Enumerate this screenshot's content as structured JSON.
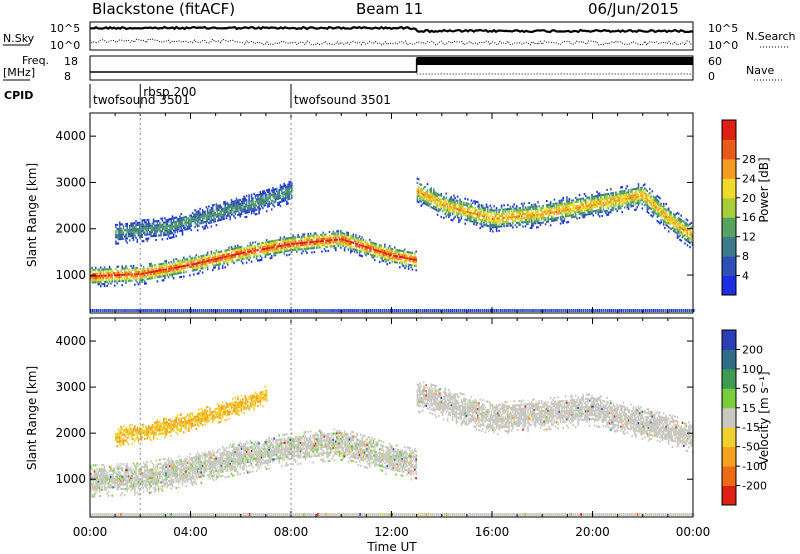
{
  "header": {
    "station": "Blackstone (fitACF)",
    "beam": "Beam 11",
    "date": "06/Jun/2015"
  },
  "side_labels": {
    "nsky": "N.Sky",
    "nsearch": "N.Search",
    "freq_line1": "Freq.",
    "freq_line2": "[MHz]",
    "nave": "Nave",
    "cpid": "CPID"
  },
  "noise_panel": {
    "left_ticks": [
      "10^5",
      "10^0"
    ],
    "right_ticks": [
      "10^5",
      "10^0"
    ]
  },
  "freq_panel": {
    "left_ticks": [
      "18",
      "8"
    ],
    "right_ticks": [
      "60",
      "0"
    ]
  },
  "cpid_panel": {
    "segments": [
      {
        "label": "twofsound 3501",
        "start_hour": 0.0
      },
      {
        "label": "rbsp 200",
        "start_hour": 2.0
      },
      {
        "label": "twofsound 3501",
        "start_hour": 8.0
      }
    ]
  },
  "power_colorbar": {
    "title": "Power [dB]",
    "tick_labels": [
      "4",
      "8",
      "12",
      "16",
      "20",
      "24",
      "28"
    ],
    "colors": [
      "#1c2ee0",
      "#2d4fb8",
      "#3d7a8c",
      "#54a35e",
      "#a8cc3a",
      "#f0d92a",
      "#f59b22",
      "#e85a1a",
      "#dd1f14"
    ]
  },
  "velocity_colorbar": {
    "title": "Velocity [m s⁻¹]",
    "tick_labels": [
      "200",
      "100",
      "50",
      "15",
      "-15",
      "-50",
      "-100",
      "-200"
    ],
    "colors": [
      "#2a3eb8",
      "#2f6d86",
      "#3f9a54",
      "#77cd3c",
      "#c8c8c0",
      "#f0d030",
      "#f5a020",
      "#ee6a14",
      "#dd1f14"
    ]
  },
  "chart_data": [
    {
      "type": "heatmap",
      "title": "",
      "ylabel": "Slant Range [km]",
      "xlabel": "",
      "x_range_hours": [
        0,
        24
      ],
      "ylim": [
        180,
        4500
      ],
      "yticks": [
        "1000",
        "2000",
        "3000",
        "4000"
      ],
      "colorbar": "Power [dB]",
      "echo_bands": [
        {
          "x": [
            0,
            2,
            4,
            6,
            8,
            10,
            12,
            13
          ],
          "y_center": [
            950,
            1000,
            1200,
            1450,
            1650,
            1750,
            1400,
            1300
          ],
          "width_km": 320,
          "peak_db": 28
        },
        {
          "x": [
            1,
            3,
            5,
            7,
            8
          ],
          "y_center": [
            1900,
            2000,
            2300,
            2600,
            2800
          ],
          "width_km": 350,
          "peak_db": 10
        },
        {
          "x": [
            13,
            14,
            16,
            18,
            20,
            22,
            23,
            24
          ],
          "y_center": [
            2800,
            2500,
            2200,
            2300,
            2500,
            2700,
            2200,
            1800
          ],
          "width_km": 400,
          "peak_db": 22
        }
      ]
    },
    {
      "type": "heatmap",
      "title": "",
      "ylabel": "Slant Range [km]",
      "xlabel": "Time UT",
      "x_range_hours": [
        0,
        24
      ],
      "xticks": [
        "00:00",
        "04:00",
        "08:00",
        "12:00",
        "16:00",
        "20:00",
        "00:00"
      ],
      "ylim": [
        180,
        4500
      ],
      "yticks": [
        "1000",
        "2000",
        "3000",
        "4000"
      ],
      "colorbar": "Velocity [m s⁻¹]",
      "echo_bands": [
        {
          "x": [
            0,
            2,
            4,
            6,
            8,
            10,
            12,
            13
          ],
          "y_center": [
            950,
            1000,
            1200,
            1450,
            1650,
            1750,
            1400,
            1300
          ],
          "width_km": 500,
          "velocity": -5
        },
        {
          "x": [
            1,
            3,
            5,
            7
          ],
          "y_center": [
            1900,
            2100,
            2400,
            2800
          ],
          "width_km": 300,
          "velocity": -50
        },
        {
          "x": [
            13,
            16,
            20,
            24
          ],
          "y_center": [
            2800,
            2300,
            2500,
            1900
          ],
          "width_km": 500,
          "velocity": 0
        }
      ]
    }
  ]
}
